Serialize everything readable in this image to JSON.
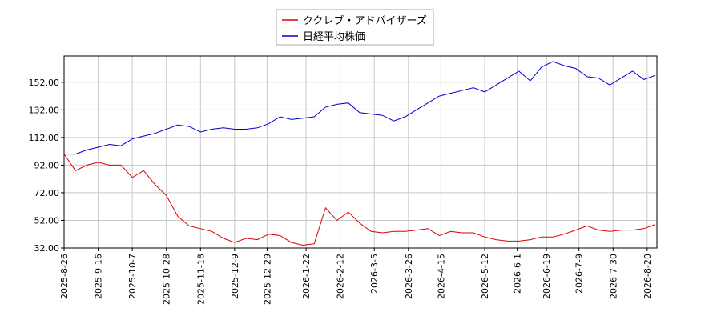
{
  "chart_data": {
    "type": "line",
    "x": [
      "2025-8-26",
      "2025-9-2",
      "2025-9-9",
      "2025-9-16",
      "2025-9-23",
      "2025-9-30",
      "2025-10-7",
      "2025-10-14",
      "2025-10-21",
      "2025-10-28",
      "2025-11-4",
      "2025-11-11",
      "2025-11-18",
      "2025-11-25",
      "2025-12-2",
      "2025-12-9",
      "2025-12-16",
      "2025-12-23",
      "2025-12-30",
      "2026-1-6",
      "2026-1-13",
      "2026-1-20",
      "2026-1-27",
      "2026-2-3",
      "2026-2-10",
      "2026-2-17",
      "2026-2-24",
      "2026-3-3",
      "2026-3-10",
      "2026-3-17",
      "2026-3-24",
      "2026-3-31",
      "2026-4-7",
      "2026-4-14",
      "2026-4-21",
      "2026-4-28",
      "2026-5-5",
      "2026-5-12",
      "2026-5-19",
      "2026-5-26",
      "2026-6-2",
      "2026-6-9",
      "2026-6-16",
      "2026-6-23",
      "2026-6-30",
      "2026-7-7",
      "2026-7-14",
      "2026-7-21",
      "2026-7-28",
      "2026-8-4",
      "2026-8-11",
      "2026-8-18",
      "2026-8-25"
    ],
    "series": [
      {
        "name": "ククレブ・アドバイザーズ",
        "color": "#dd0000",
        "values": [
          100,
          88,
          92,
          94,
          92,
          92,
          83,
          88,
          78,
          70,
          55,
          48,
          46,
          44,
          39,
          36,
          39,
          38,
          42,
          41,
          36,
          34,
          35,
          61,
          52,
          58,
          50,
          44,
          43,
          44,
          44,
          45,
          46,
          41,
          44,
          43,
          43,
          40,
          38,
          37,
          37,
          38,
          40,
          40,
          42,
          45,
          48,
          45,
          44,
          45,
          45,
          46,
          49
        ]
      },
      {
        "name": "日経平均株価",
        "color": "#0000cc",
        "values": [
          100,
          100,
          103,
          105,
          107,
          106,
          111,
          113,
          115,
          118,
          121,
          120,
          116,
          118,
          119,
          118,
          118,
          119,
          122,
          127,
          125,
          126,
          127,
          134,
          136,
          137,
          130,
          129,
          128,
          124,
          127,
          132,
          137,
          142,
          144,
          146,
          148,
          145,
          150,
          155,
          160,
          153,
          163,
          167,
          164,
          162,
          156,
          155,
          150,
          155,
          160,
          154,
          157
        ]
      }
    ],
    "xlim": [
      "2025-8-26",
      "2026-8-26"
    ],
    "xticks": [
      "2025-8-26",
      "2025-9-16",
      "2025-10-7",
      "2025-10-28",
      "2025-11-18",
      "2025-12-9",
      "2025-12-29",
      "2026-1-22",
      "2026-2-12",
      "2026-3-5",
      "2026-3-26",
      "2026-4-15",
      "2026-5-12",
      "2026-6-1",
      "2026-6-19",
      "2026-7-9",
      "2026-7-30",
      "2026-8-20"
    ],
    "ylim": [
      32,
      171
    ],
    "yticks": [
      {
        "value": 32,
        "label": "32.00"
      },
      {
        "value": 52,
        "label": "52.00"
      },
      {
        "value": 72,
        "label": "72.00"
      },
      {
        "value": 92,
        "label": "92.00"
      },
      {
        "value": 112,
        "label": "112.00"
      },
      {
        "value": 132,
        "label": "132.00"
      },
      {
        "value": 152,
        "label": "152.00"
      }
    ],
    "grid": true
  }
}
